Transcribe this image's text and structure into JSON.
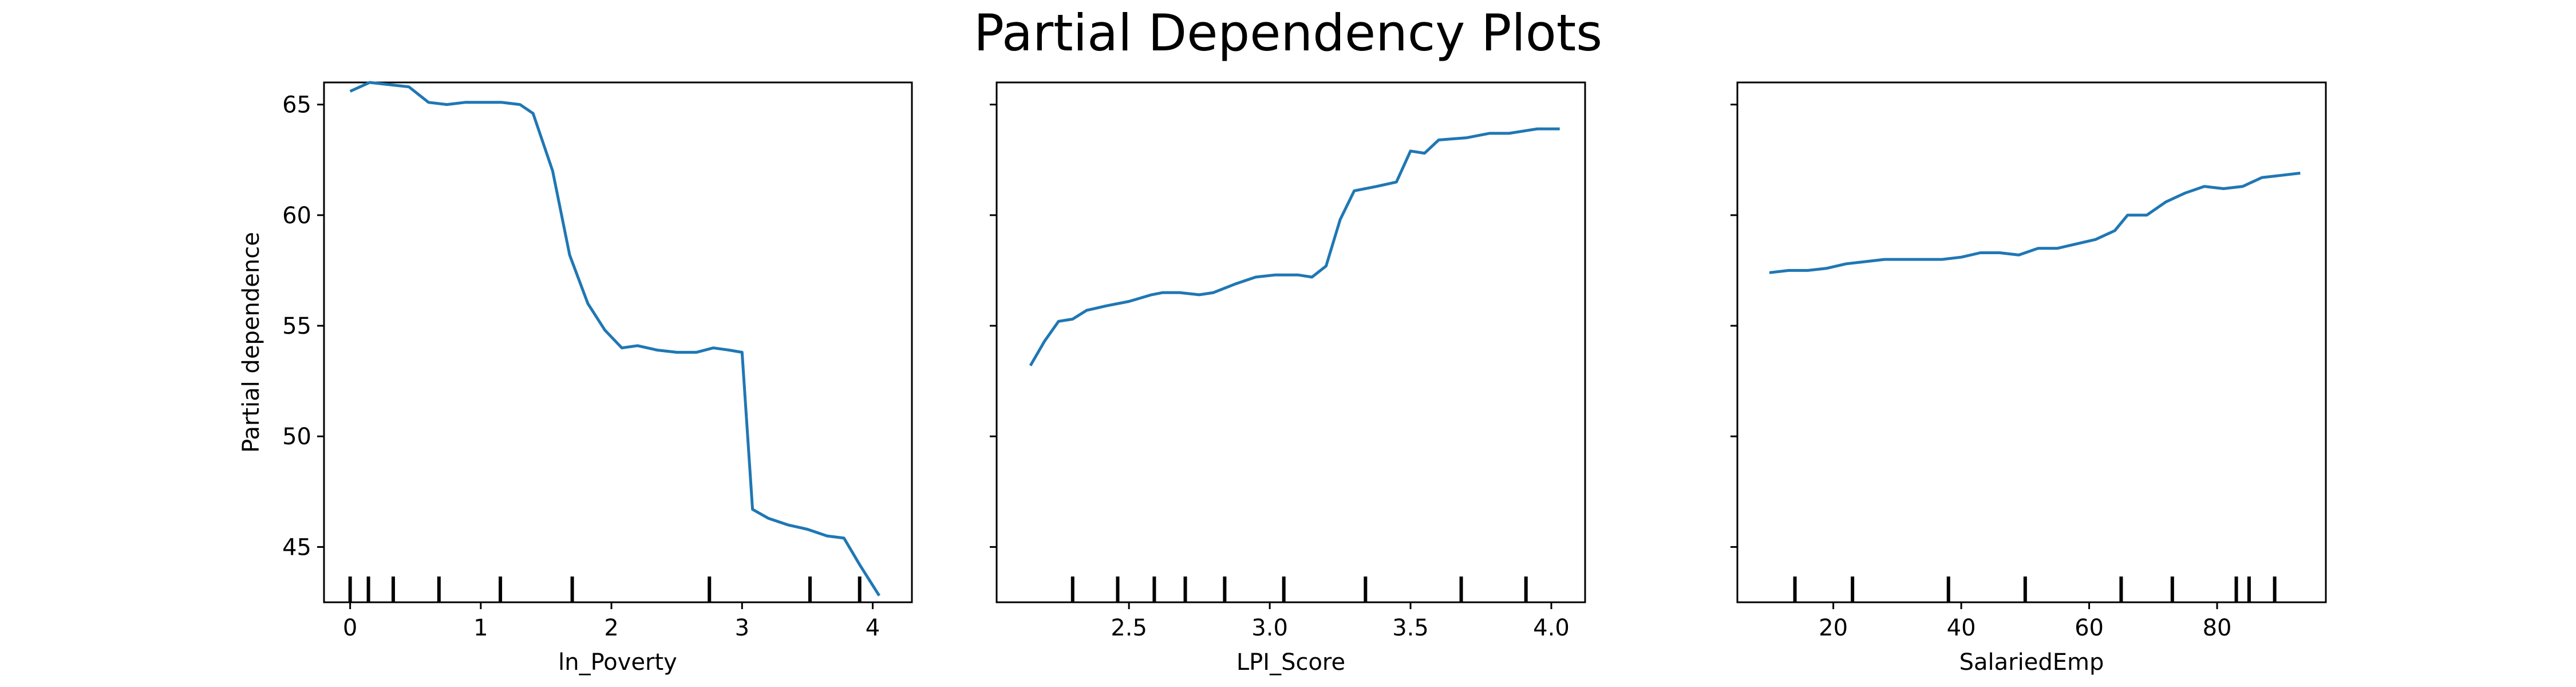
{
  "figure": {
    "title": "Partial Dependency Plots"
  },
  "colors": {
    "line": "#1f77b4",
    "axis": "#000000",
    "background": "#ffffff"
  },
  "chart_data": [
    {
      "type": "line",
      "panel": "left",
      "xlabel": "ln_Poverty",
      "ylabel": "Partial dependence",
      "xlim": [
        -0.2,
        4.3
      ],
      "ylim": [
        42.5,
        66.0
      ],
      "xticks": [
        0,
        1,
        2,
        3,
        4
      ],
      "xtick_labels": [
        "0",
        "1",
        "2",
        "3",
        "4"
      ],
      "yticks": [
        45,
        50,
        55,
        60,
        65
      ],
      "ytick_labels": [
        "45",
        "50",
        "55",
        "60",
        "65"
      ],
      "show_y_tick_labels": true,
      "x": [
        0.0,
        0.15,
        0.3,
        0.45,
        0.6,
        0.74,
        0.88,
        1.02,
        1.16,
        1.3,
        1.4,
        1.55,
        1.68,
        1.82,
        1.95,
        2.08,
        2.2,
        2.35,
        2.5,
        2.65,
        2.78,
        2.9,
        3.0,
        3.08,
        3.2,
        3.35,
        3.5,
        3.65,
        3.78,
        3.9,
        4.05
      ],
      "y": [
        65.6,
        66.0,
        65.9,
        65.8,
        65.1,
        65.0,
        65.1,
        65.1,
        65.1,
        65.0,
        64.6,
        62.0,
        58.2,
        56.0,
        54.8,
        54.0,
        54.1,
        53.9,
        53.8,
        53.8,
        54.0,
        53.9,
        53.8,
        46.7,
        46.3,
        46.0,
        45.8,
        45.5,
        45.4,
        44.2,
        42.8
      ],
      "rug": [
        0.0,
        0.14,
        0.33,
        0.68,
        1.15,
        1.7,
        2.75,
        3.52,
        3.9
      ]
    },
    {
      "type": "line",
      "panel": "middle",
      "xlabel": "LPI_Score",
      "ylabel": "",
      "xlim": [
        2.03,
        4.12
      ],
      "ylim": [
        42.5,
        66.0
      ],
      "xticks": [
        2.5,
        3.0,
        3.5,
        4.0
      ],
      "xtick_labels": [
        "2.5",
        "3.0",
        "3.5",
        "4.0"
      ],
      "yticks": [
        45,
        50,
        55,
        60,
        65
      ],
      "ytick_labels": [
        "45",
        "50",
        "55",
        "60",
        "65"
      ],
      "show_y_tick_labels": false,
      "x": [
        2.15,
        2.2,
        2.25,
        2.3,
        2.35,
        2.42,
        2.5,
        2.58,
        2.62,
        2.68,
        2.75,
        2.8,
        2.88,
        2.95,
        3.02,
        3.1,
        3.15,
        3.2,
        3.25,
        3.3,
        3.38,
        3.45,
        3.5,
        3.55,
        3.6,
        3.7,
        3.78,
        3.85,
        3.95,
        4.03
      ],
      "y": [
        53.2,
        54.3,
        55.2,
        55.3,
        55.7,
        55.9,
        56.1,
        56.4,
        56.5,
        56.5,
        56.4,
        56.5,
        56.9,
        57.2,
        57.3,
        57.3,
        57.2,
        57.7,
        59.8,
        61.1,
        61.3,
        61.5,
        62.9,
        62.8,
        63.4,
        63.5,
        63.7,
        63.7,
        63.9,
        63.9
      ],
      "rug": [
        2.3,
        2.46,
        2.59,
        2.7,
        2.84,
        3.05,
        3.34,
        3.68,
        3.91
      ]
    },
    {
      "type": "line",
      "panel": "right",
      "xlabel": "SalariedEmp",
      "ylabel": "",
      "xlim": [
        5,
        97
      ],
      "ylim": [
        42.5,
        66.0
      ],
      "xticks": [
        20,
        40,
        60,
        80
      ],
      "xtick_labels": [
        "20",
        "40",
        "60",
        "80"
      ],
      "yticks": [
        45,
        50,
        55,
        60,
        65
      ],
      "ytick_labels": [
        "45",
        "50",
        "55",
        "60",
        "65"
      ],
      "show_y_tick_labels": false,
      "x": [
        10,
        13,
        16,
        19,
        22,
        25,
        28,
        31,
        34,
        37,
        40,
        43,
        46,
        49,
        52,
        55,
        58,
        61,
        64,
        66,
        69,
        72,
        75,
        78,
        81,
        84,
        87,
        90,
        93
      ],
      "y": [
        57.4,
        57.5,
        57.5,
        57.6,
        57.8,
        57.9,
        58.0,
        58.0,
        58.0,
        58.0,
        58.1,
        58.3,
        58.3,
        58.2,
        58.5,
        58.5,
        58.7,
        58.9,
        59.3,
        60.0,
        60.0,
        60.6,
        61.0,
        61.3,
        61.2,
        61.3,
        61.7,
        61.8,
        61.9
      ],
      "rug": [
        14,
        23,
        38,
        50,
        65,
        73,
        83,
        85,
        89
      ]
    }
  ]
}
